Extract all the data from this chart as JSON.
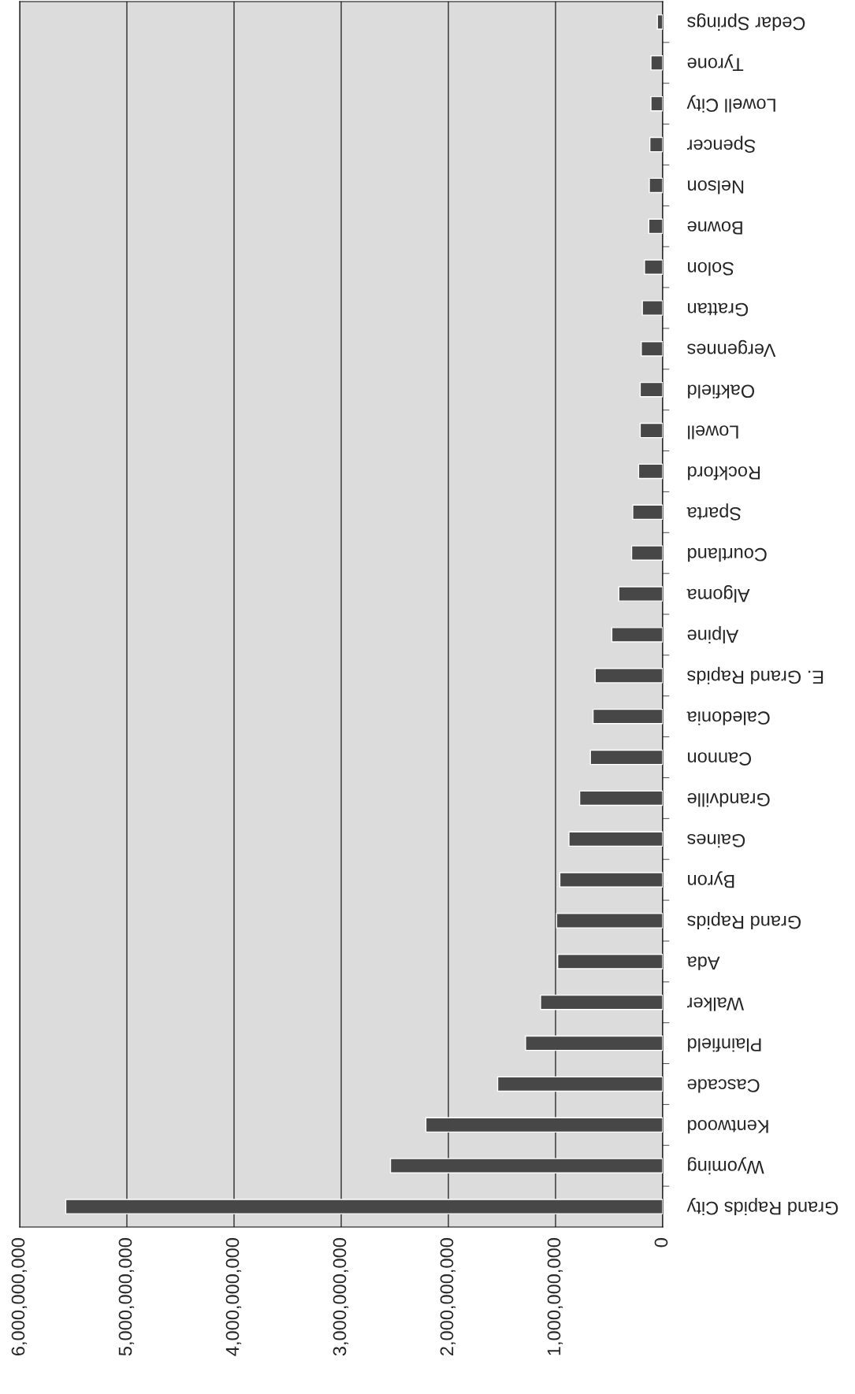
{
  "chart_data": {
    "type": "bar",
    "orientation": "horizontal",
    "categories": [
      "Cedar Springs",
      "Tyrone",
      "Lowell City",
      "Spencer",
      "Nelson",
      "Bowne",
      "Solon",
      "Grattan",
      "Vergennes",
      "Oakfield",
      "Lowell",
      "Rockford",
      "Sparta",
      "Courtland",
      "Algoma",
      "Alpine",
      "E. Grand Rapids",
      "Caledonia",
      "Cannon",
      "Grandville",
      "Gaines",
      "Byron",
      "Grand Rapids",
      "Ada",
      "Walker",
      "Plainfield",
      "Cascade",
      "Kentwood",
      "Wyoming",
      "Grand Rapids City"
    ],
    "values": [
      50000000,
      110000000,
      110000000,
      120000000,
      125000000,
      130000000,
      170000000,
      190000000,
      200000000,
      210000000,
      210000000,
      225000000,
      280000000,
      290000000,
      410000000,
      475000000,
      630000000,
      650000000,
      675000000,
      775000000,
      875000000,
      960000000,
      990000000,
      980000000,
      1140000000,
      1280000000,
      1540000000,
      2210000000,
      2540000000,
      5570000000
    ],
    "color": "#474747",
    "xlim": [
      6000000000,
      0
    ],
    "xticks": [
      {
        "value": 0,
        "label": "0"
      },
      {
        "value": 1000000000,
        "label": "1,000,000,000"
      },
      {
        "value": 2000000000,
        "label": "2,000,000,000"
      },
      {
        "value": 3000000000,
        "label": "3,000,000,000"
      },
      {
        "value": 4000000000,
        "label": "4,000,000,000"
      },
      {
        "value": 5000000000,
        "label": "5,000,000,000"
      },
      {
        "value": 6000000000,
        "label": "6,000,000,000"
      }
    ],
    "grid": "x"
  }
}
